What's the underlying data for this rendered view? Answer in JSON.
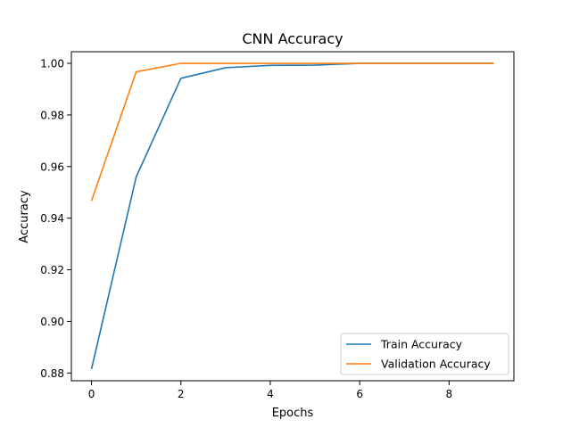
{
  "chart_data": {
    "type": "line",
    "title": "CNN Accuracy",
    "xlabel": "Epochs",
    "ylabel": "Accuracy",
    "x": [
      0,
      1,
      2,
      3,
      4,
      5,
      6,
      7,
      8,
      9
    ],
    "xlim": [
      -0.45,
      9.45
    ],
    "ylim": [
      0.877,
      1.0045
    ],
    "xticks": [
      0,
      2,
      4,
      6,
      8
    ],
    "yticks": [
      0.88,
      0.9,
      0.92,
      0.94,
      0.96,
      0.98,
      1.0
    ],
    "xtick_labels": [
      "0",
      "2",
      "4",
      "6",
      "8"
    ],
    "ytick_labels": [
      "0.88",
      "0.90",
      "0.92",
      "0.94",
      "0.96",
      "0.98",
      "1.00"
    ],
    "grid": false,
    "legend_position": "lower-right",
    "series": [
      {
        "name": "Train Accuracy",
        "color": "#1f77b4",
        "values": [
          0.8815,
          0.956,
          0.9942,
          0.9983,
          0.9992,
          0.9993,
          1.0,
          1.0,
          1.0,
          1.0
        ]
      },
      {
        "name": "Validation Accuracy",
        "color": "#ff7f0e",
        "values": [
          0.9467,
          0.9967,
          1.0,
          1.0,
          1.0,
          1.0,
          1.0,
          1.0,
          1.0,
          1.0
        ]
      }
    ]
  }
}
